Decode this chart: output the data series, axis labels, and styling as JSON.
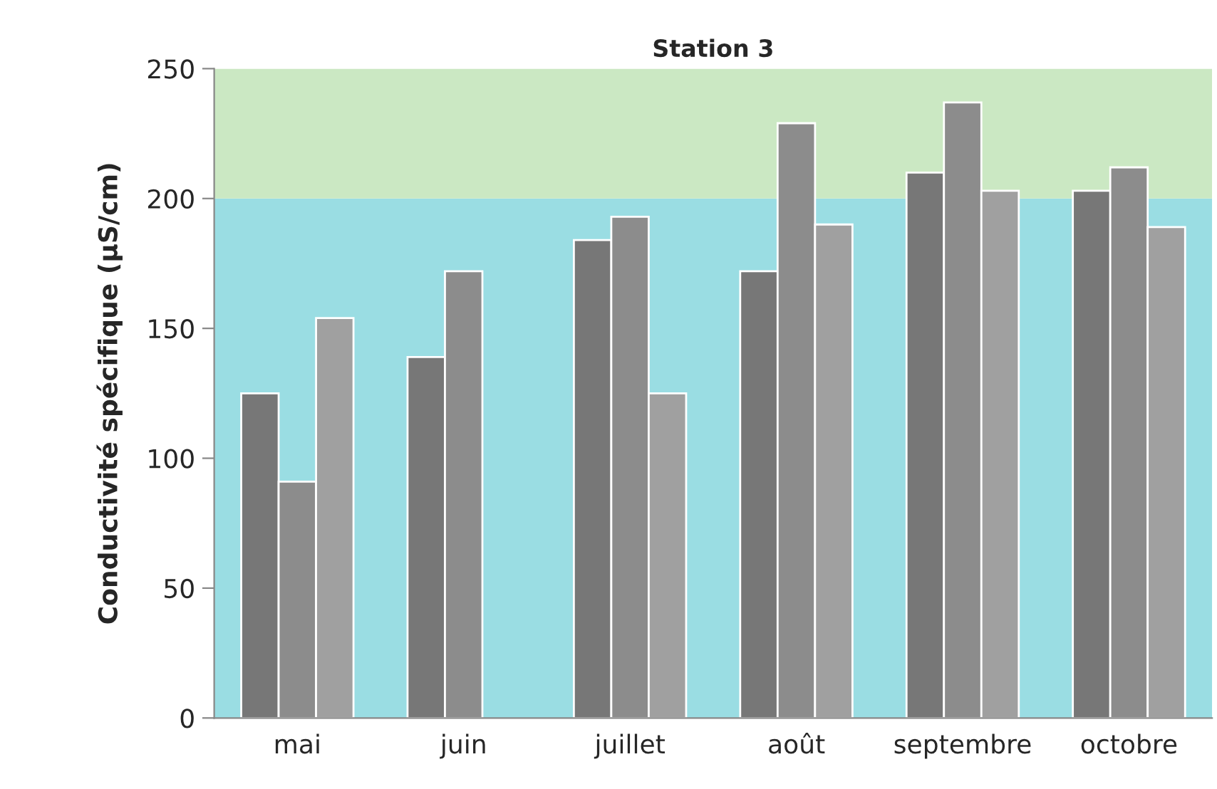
{
  "chart_data": {
    "type": "bar",
    "title": "Station 3",
    "ylabel": "Conductivité spécifique (µS/cm)",
    "categories": [
      "mai",
      "juin",
      "juillet",
      "août",
      "septembre",
      "octobre"
    ],
    "series": [
      {
        "color": "#777777",
        "values": [
          125,
          139,
          184,
          172,
          210,
          203
        ]
      },
      {
        "color": "#8c8c8c",
        "values": [
          91,
          172,
          193,
          229,
          237,
          212
        ]
      },
      {
        "color": "#a0a0a0",
        "values": [
          154,
          null,
          125,
          190,
          203,
          189
        ]
      }
    ],
    "bands": [
      {
        "axis": "y",
        "from": 0,
        "to": 200,
        "color": "#9adde3"
      },
      {
        "axis": "y",
        "from": 200,
        "to": 250,
        "color": "#cbe8c3"
      }
    ],
    "ylim": [
      0,
      250
    ],
    "yticks": [
      0,
      50,
      100,
      150,
      200,
      250
    ],
    "grid": false,
    "legend": false
  }
}
